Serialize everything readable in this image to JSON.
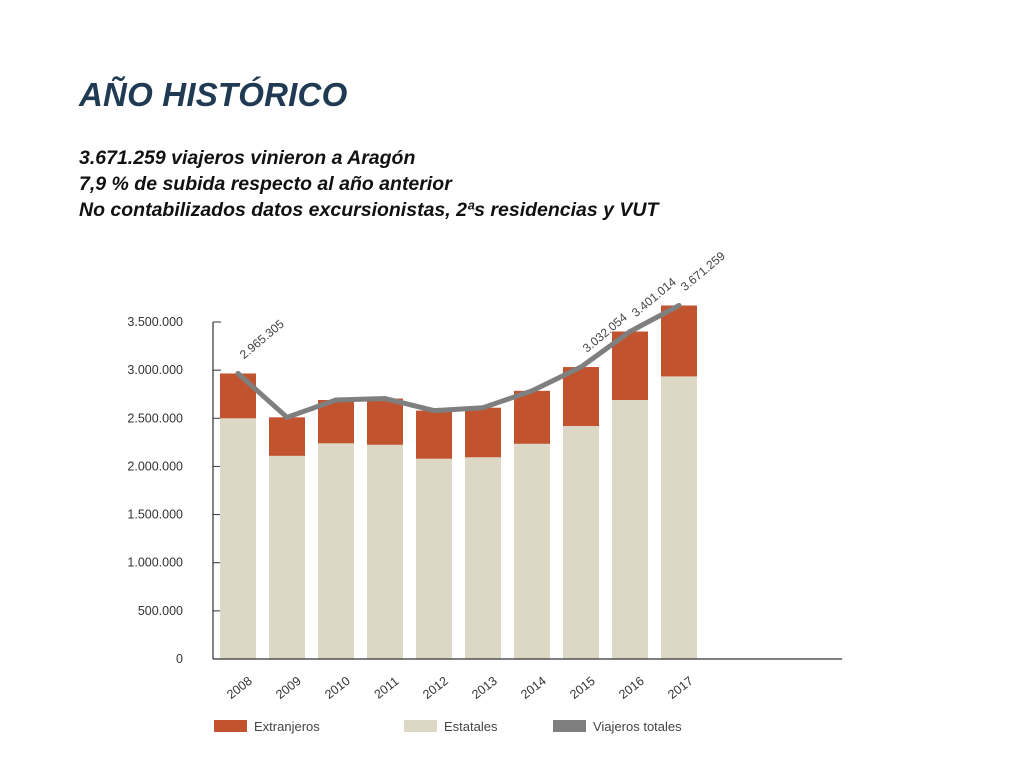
{
  "slide": {
    "title": "AÑO HISTÓRICO",
    "lines": [
      "3.671.259 viajeros vinieron a Aragón",
      "7,9 % de subida respecto al año anterior",
      "No contabilizados datos excursionistas, 2ªs residencias y VUT"
    ]
  },
  "chart_data": {
    "type": "bar",
    "stacked": true,
    "categories": [
      "2008",
      "2009",
      "2010",
      "2011",
      "2012",
      "2013",
      "2014",
      "2015",
      "2016",
      "2017"
    ],
    "series": [
      {
        "name": "Estatales",
        "kind": "bar",
        "color": "#ddd7c6",
        "values": [
          2500000,
          2110000,
          2240000,
          2225000,
          2080000,
          2095000,
          2235000,
          2420000,
          2690000,
          2935000
        ]
      },
      {
        "name": "Extranjeros",
        "kind": "bar",
        "color": "#c1532f",
        "values": [
          465305,
          400000,
          450000,
          480000,
          500000,
          515000,
          550000,
          612054,
          711014,
          736259
        ]
      },
      {
        "name": "Viajeros totales",
        "kind": "line",
        "color": "#7f7f7f",
        "values": [
          2965305,
          2510000,
          2690000,
          2705000,
          2580000,
          2610000,
          2785000,
          3032054,
          3401014,
          3671259
        ]
      }
    ],
    "data_labels": [
      {
        "category": "2008",
        "text": "2.965.305"
      },
      {
        "category": "2015",
        "text": "3.032.054"
      },
      {
        "category": "2016",
        "text": "3.401.014"
      },
      {
        "category": "2017",
        "text": "3.671.259"
      }
    ],
    "y_ticks": [
      0,
      500000,
      1000000,
      1500000,
      2000000,
      2500000,
      3000000,
      3500000
    ],
    "y_tick_labels": [
      "0",
      "500.000",
      "1.000.000",
      "1.500.000",
      "2.000.000",
      "2.500.000",
      "3.000.000",
      "3.500.000"
    ],
    "ylim": [
      0,
      3500000
    ],
    "grid": false,
    "legend_position": "bottom",
    "legend": [
      "Extranjeros",
      "Estatales",
      "Viajeros totales"
    ]
  }
}
